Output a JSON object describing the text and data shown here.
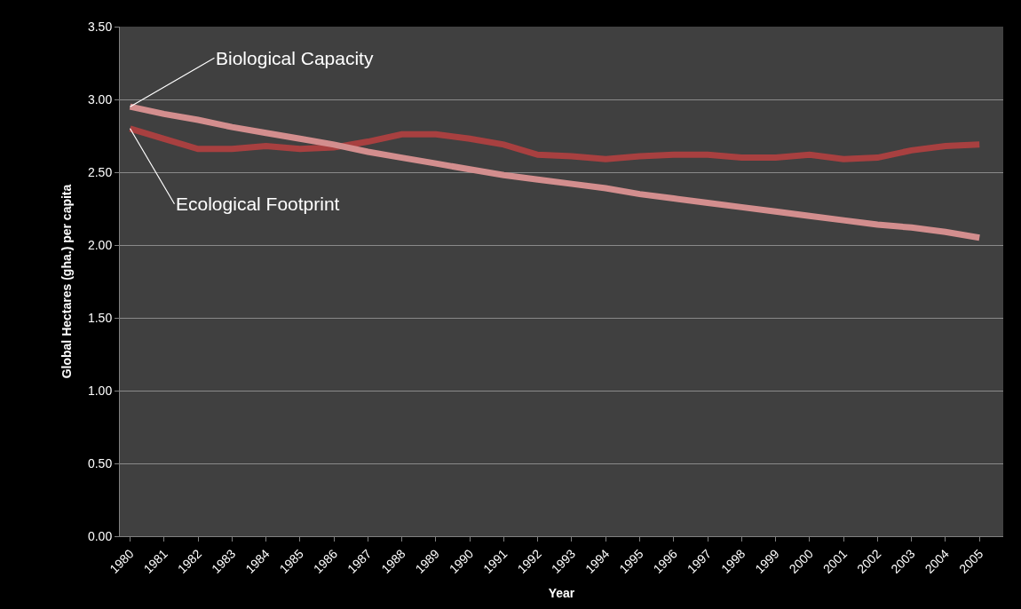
{
  "chart_data": {
    "type": "line",
    "xlabel": "Year",
    "ylabel": "Global Hectares (gha.) per capita",
    "categories": [
      "1980",
      "1981",
      "1982",
      "1983",
      "1984",
      "1985",
      "1986",
      "1987",
      "1988",
      "1989",
      "1990",
      "1991",
      "1992",
      "1993",
      "1994",
      "1995",
      "1996",
      "1997",
      "1998",
      "1999",
      "2000",
      "2001",
      "2002",
      "2003",
      "2004",
      "2005"
    ],
    "series": [
      {
        "name": "Ecological Footprint",
        "color": "#a84040",
        "values": [
          2.8,
          2.73,
          2.66,
          2.66,
          2.68,
          2.66,
          2.67,
          2.71,
          2.76,
          2.76,
          2.73,
          2.69,
          2.62,
          2.61,
          2.59,
          2.61,
          2.62,
          2.62,
          2.6,
          2.6,
          2.62,
          2.59,
          2.6,
          2.65,
          2.68,
          2.69
        ]
      },
      {
        "name": "Biological Capacity",
        "color": "#d38e8e",
        "values": [
          2.95,
          2.9,
          2.86,
          2.81,
          2.77,
          2.73,
          2.69,
          2.64,
          2.6,
          2.56,
          2.52,
          2.48,
          2.45,
          2.42,
          2.39,
          2.35,
          2.32,
          2.29,
          2.26,
          2.23,
          2.2,
          2.17,
          2.14,
          2.12,
          2.09,
          2.05
        ]
      }
    ],
    "ylim": [
      0,
      3.5
    ],
    "yticks": [
      {
        "value": 0,
        "label": "0.00"
      },
      {
        "value": 0.5,
        "label": "0.50"
      },
      {
        "value": 1,
        "label": "1.00"
      },
      {
        "value": 1.5,
        "label": "1.50"
      },
      {
        "value": 2,
        "label": "2.00"
      },
      {
        "value": 2.5,
        "label": "2.50"
      },
      {
        "value": 3,
        "label": "3.00"
      },
      {
        "value": 3.5,
        "label": "3.50"
      }
    ],
    "grid": "y",
    "legend": false,
    "marker": "none",
    "line_style": "solid"
  }
}
